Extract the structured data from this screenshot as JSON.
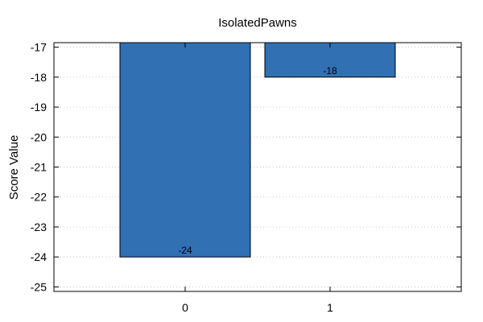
{
  "chart_data": {
    "type": "bar",
    "title": "IsolatedPawns",
    "xlabel": "",
    "ylabel": "Score Value",
    "categories": [
      "0",
      "1"
    ],
    "values": [
      -24,
      -18
    ],
    "data_labels": [
      "-24",
      "-18"
    ],
    "yticks": [
      "-17",
      "-18",
      "-19",
      "-20",
      "-21",
      "-22",
      "-23",
      "-24",
      "-25"
    ],
    "ylim": [
      -25.15,
      -16.85
    ],
    "bar_baseline": -16.85,
    "grid": {
      "y": true,
      "style": "dotted"
    },
    "colors": {
      "bar": "#3070b3",
      "bar_edge": "#000000",
      "grid": "#c8c8c8"
    }
  }
}
